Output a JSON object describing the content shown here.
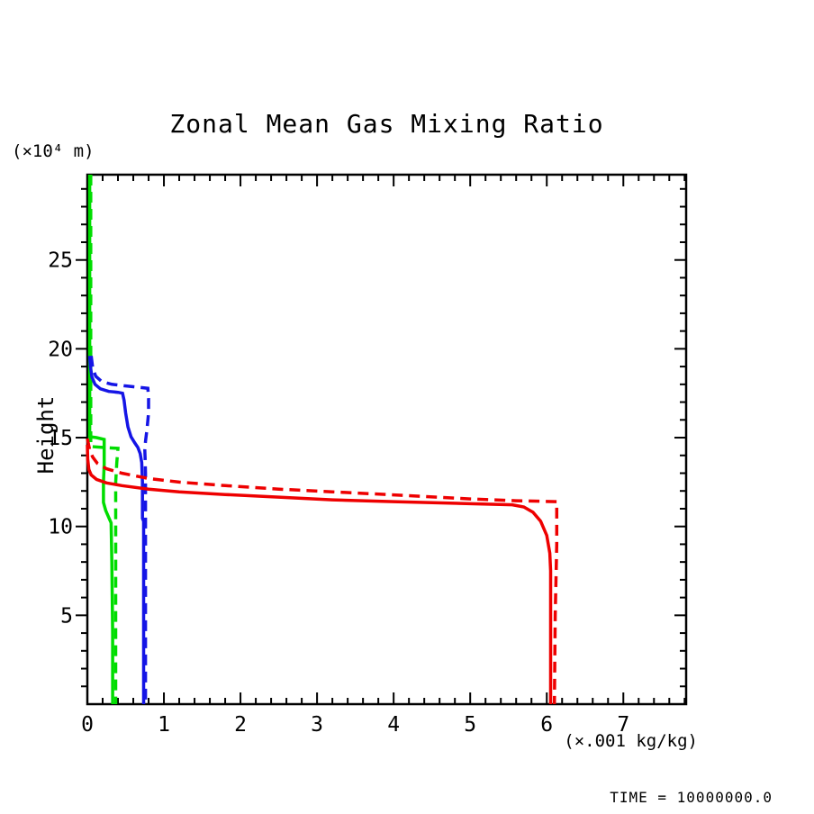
{
  "page": {
    "background": "#ffffff"
  },
  "title": "Zonal Mean Gas Mixing Ratio",
  "labels": {
    "y_axis_unit": "(×10⁴ m)",
    "y_axis_name": "Height",
    "x_axis_unit": "(×.001 kg/kg)",
    "time_annotation": "TIME = 10000000.0"
  },
  "chart_data": {
    "type": "line",
    "title": "Zonal Mean Gas Mixing Ratio",
    "xlabel": "(×.001 kg/kg)",
    "ylabel": "Height (×10⁴ m)",
    "xlim": [
      0,
      7.82
    ],
    "ylim": [
      0,
      29.8
    ],
    "x_major_ticks": [
      0,
      1,
      2,
      3,
      4,
      5,
      6,
      7
    ],
    "x_minor_step": 0.2,
    "y_major_ticks": [
      5,
      10,
      15,
      20,
      25
    ],
    "y_minor_step": 1,
    "grid": false,
    "legend": "none",
    "frame_color": "#000000",
    "series": [
      {
        "name": "gas-1-solid",
        "color": "#00dd00",
        "style": "solid",
        "width": 3.5,
        "points": [
          [
            0.03,
            29.8
          ],
          [
            0.03,
            15.05
          ],
          [
            0.12,
            15.0
          ],
          [
            0.22,
            14.9
          ],
          [
            0.22,
            13.5
          ],
          [
            0.21,
            12.5
          ],
          [
            0.21,
            11.35
          ],
          [
            0.24,
            10.9
          ],
          [
            0.28,
            10.5
          ],
          [
            0.31,
            10.2
          ],
          [
            0.32,
            8.0
          ],
          [
            0.33,
            4.0
          ],
          [
            0.33,
            0
          ]
        ]
      },
      {
        "name": "gas-1-dashed",
        "color": "#00dd00",
        "style": "dashed",
        "width": 3.5,
        "points": [
          [
            0.045,
            29.8
          ],
          [
            0.045,
            14.5
          ],
          [
            0.2,
            14.45
          ],
          [
            0.4,
            14.4
          ],
          [
            0.385,
            13.6
          ],
          [
            0.37,
            12.5
          ],
          [
            0.37,
            0
          ]
        ]
      },
      {
        "name": "gas-2-solid",
        "color": "#1515e6",
        "style": "solid",
        "width": 3.5,
        "points": [
          [
            0.03,
            19.6
          ],
          [
            0.04,
            19.0
          ],
          [
            0.06,
            18.4
          ],
          [
            0.1,
            18.0
          ],
          [
            0.17,
            17.75
          ],
          [
            0.28,
            17.6
          ],
          [
            0.4,
            17.55
          ],
          [
            0.46,
            17.5
          ],
          [
            0.48,
            17.1
          ],
          [
            0.5,
            16.4
          ],
          [
            0.53,
            15.6
          ],
          [
            0.57,
            15.05
          ],
          [
            0.62,
            14.7
          ],
          [
            0.66,
            14.45
          ],
          [
            0.69,
            14.1
          ],
          [
            0.71,
            13.6
          ],
          [
            0.72,
            12.5
          ],
          [
            0.72,
            10.45
          ],
          [
            0.735,
            10.3
          ],
          [
            0.735,
            0
          ]
        ]
      },
      {
        "name": "gas-2-dashed",
        "color": "#1515e6",
        "style": "dashed",
        "width": 3.5,
        "points": [
          [
            0.05,
            19.6
          ],
          [
            0.07,
            18.9
          ],
          [
            0.11,
            18.45
          ],
          [
            0.19,
            18.15
          ],
          [
            0.32,
            18.0
          ],
          [
            0.52,
            17.9
          ],
          [
            0.7,
            17.82
          ],
          [
            0.79,
            17.78
          ],
          [
            0.8,
            17.2
          ],
          [
            0.8,
            16.4
          ],
          [
            0.78,
            15.5
          ],
          [
            0.76,
            14.8
          ],
          [
            0.75,
            14.3
          ],
          [
            0.755,
            13.8
          ],
          [
            0.76,
            13.0
          ],
          [
            0.76,
            0
          ]
        ]
      },
      {
        "name": "gas-3-solid",
        "color": "#ee0000",
        "style": "solid",
        "width": 3.5,
        "points": [
          [
            0.0,
            14.6
          ],
          [
            0.005,
            13.8
          ],
          [
            0.02,
            13.2
          ],
          [
            0.05,
            12.9
          ],
          [
            0.12,
            12.65
          ],
          [
            0.25,
            12.45
          ],
          [
            0.45,
            12.3
          ],
          [
            0.8,
            12.1
          ],
          [
            1.2,
            11.95
          ],
          [
            1.8,
            11.8
          ],
          [
            2.5,
            11.65
          ],
          [
            3.2,
            11.5
          ],
          [
            4.0,
            11.4
          ],
          [
            5.0,
            11.28
          ],
          [
            5.55,
            11.22
          ],
          [
            5.7,
            11.1
          ],
          [
            5.82,
            10.8
          ],
          [
            5.92,
            10.3
          ],
          [
            6.0,
            9.5
          ],
          [
            6.04,
            8.5
          ],
          [
            6.05,
            7.5
          ],
          [
            6.05,
            0
          ]
        ]
      },
      {
        "name": "gas-3-dashed",
        "color": "#ee0000",
        "style": "dashed",
        "width": 3.5,
        "points": [
          [
            0.0,
            14.95
          ],
          [
            0.03,
            14.3
          ],
          [
            0.07,
            13.9
          ],
          [
            0.13,
            13.55
          ],
          [
            0.25,
            13.25
          ],
          [
            0.45,
            13.0
          ],
          [
            0.8,
            12.7
          ],
          [
            1.2,
            12.5
          ],
          [
            1.8,
            12.3
          ],
          [
            2.5,
            12.1
          ],
          [
            3.2,
            11.95
          ],
          [
            4.0,
            11.78
          ],
          [
            5.0,
            11.55
          ],
          [
            5.6,
            11.45
          ],
          [
            6.13,
            11.4
          ],
          [
            6.13,
            9.0
          ],
          [
            6.11,
            5.0
          ],
          [
            6.1,
            0
          ]
        ]
      }
    ]
  }
}
